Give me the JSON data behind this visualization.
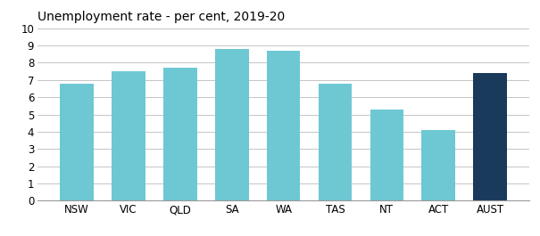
{
  "categories": [
    "NSW",
    "VIC",
    "QLD",
    "SA",
    "WA",
    "TAS",
    "NT",
    "ACT",
    "AUST"
  ],
  "values": [
    6.8,
    7.5,
    7.7,
    8.8,
    8.7,
    6.8,
    5.3,
    4.1,
    7.4
  ],
  "bar_colors": [
    "#6dc8d4",
    "#6dc8d4",
    "#6dc8d4",
    "#6dc8d4",
    "#6dc8d4",
    "#6dc8d4",
    "#6dc8d4",
    "#6dc8d4",
    "#1a3a5c"
  ],
  "title": "Unemployment rate - per cent, 2019-20",
  "ylim": [
    0,
    10
  ],
  "yticks": [
    0,
    1,
    2,
    3,
    4,
    5,
    6,
    7,
    8,
    9,
    10
  ],
  "title_fontsize": 10,
  "tick_fontsize": 8.5,
  "background_color": "#ffffff",
  "grid_color": "#bbbbbb"
}
